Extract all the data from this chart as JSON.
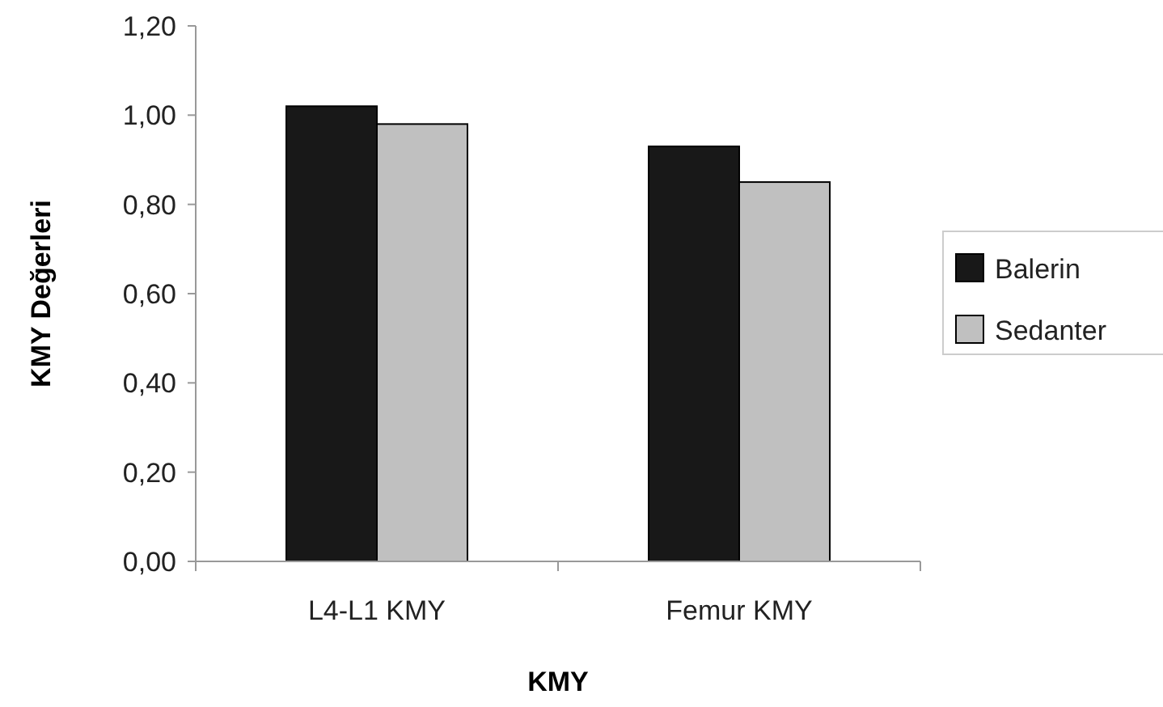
{
  "chart_data": {
    "type": "bar",
    "xlabel": "KMY",
    "ylabel": "KMY Değerleri",
    "categories": [
      "L4-L1 KMY",
      "Femur KMY"
    ],
    "series": [
      {
        "name": "Balerin",
        "color": "#181818",
        "values": [
          1.02,
          0.93
        ]
      },
      {
        "name": "Sedanter",
        "color": "#c0c0c0",
        "values": [
          0.98,
          0.85
        ]
      }
    ],
    "ylim": [
      0,
      1.2
    ],
    "yticks": [
      {
        "value": 0,
        "label": "0,00"
      },
      {
        "value": 0.2,
        "label": "0,20"
      },
      {
        "value": 0.4,
        "label": "0,40"
      },
      {
        "value": 0.6,
        "label": "0,60"
      },
      {
        "value": 0.8,
        "label": "0,80"
      },
      {
        "value": 1,
        "label": "1,00"
      },
      {
        "value": 1.2,
        "label": "1,20"
      }
    ],
    "grid": false,
    "legend": "right"
  }
}
